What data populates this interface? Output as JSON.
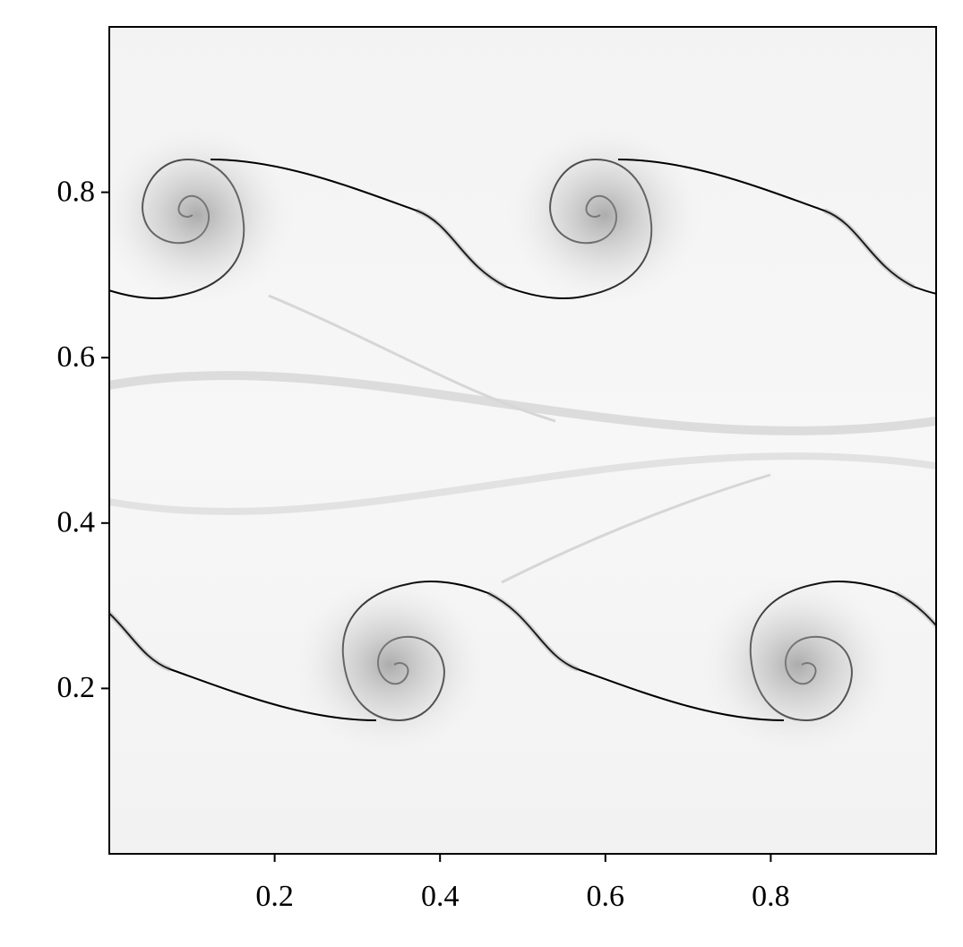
{
  "chart_data": {
    "type": "image",
    "xlim": [
      0,
      1
    ],
    "ylim": [
      0,
      1
    ],
    "xticks": [
      0.2,
      0.4,
      0.6,
      0.8
    ],
    "yticks": [
      0.2,
      0.4,
      0.6,
      0.8
    ]
  }
}
